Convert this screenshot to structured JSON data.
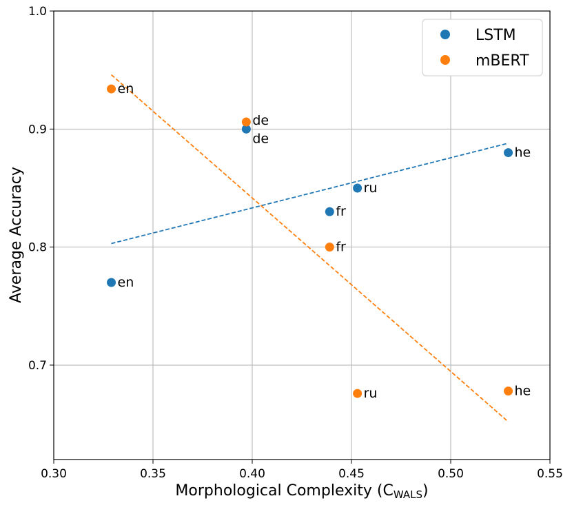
{
  "chart_data": {
    "type": "scatter",
    "title": "",
    "xlabel": "Morphological Complexity (C",
    "xlabel_sub": "WALS",
    "xlabel_end": ")",
    "ylabel": "Average Accuracy",
    "xlim": [
      0.3,
      0.55
    ],
    "ylim": [
      0.62,
      1.0
    ],
    "grid": true,
    "legend_position": "top-right",
    "x_ticks": [
      0.3,
      0.35,
      0.4,
      0.45,
      0.5,
      0.55
    ],
    "x_tick_labels": [
      "0.30",
      "0.35",
      "0.40",
      "0.45",
      "0.50",
      "0.55"
    ],
    "y_ticks": [
      0.7,
      0.8,
      0.9,
      1.0
    ],
    "y_tick_labels": [
      "0.7",
      "0.8",
      "0.9",
      "1.0"
    ],
    "series": [
      {
        "name": "LSTM",
        "color": "#1f77b4",
        "points": [
          {
            "label": "en",
            "x": 0.329,
            "y": 0.77
          },
          {
            "label": "de",
            "x": 0.397,
            "y": 0.9
          },
          {
            "label": "fr",
            "x": 0.439,
            "y": 0.83
          },
          {
            "label": "ru",
            "x": 0.453,
            "y": 0.85
          },
          {
            "label": "he",
            "x": 0.529,
            "y": 0.88
          }
        ],
        "trend": {
          "x": [
            0.329,
            0.529
          ],
          "y": [
            0.803,
            0.888
          ]
        }
      },
      {
        "name": "mBERT",
        "color": "#ff7f0e",
        "points": [
          {
            "label": "en",
            "x": 0.329,
            "y": 0.934
          },
          {
            "label": "de",
            "x": 0.397,
            "y": 0.906
          },
          {
            "label": "fr",
            "x": 0.439,
            "y": 0.8
          },
          {
            "label": "ru",
            "x": 0.453,
            "y": 0.676
          },
          {
            "label": "he",
            "x": 0.529,
            "y": 0.678
          }
        ],
        "trend": {
          "x": [
            0.329,
            0.529
          ],
          "y": [
            0.946,
            0.652
          ]
        }
      }
    ]
  }
}
